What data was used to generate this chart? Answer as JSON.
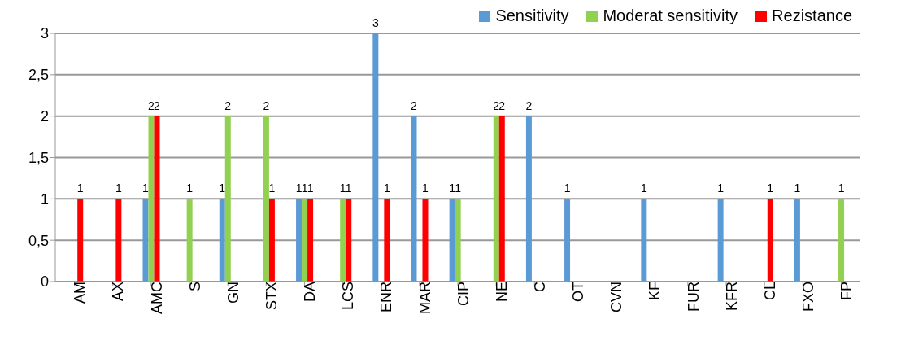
{
  "chart_data": {
    "type": "bar",
    "categories": [
      "AM",
      "AX",
      "AMC",
      "S",
      "GN",
      "STX",
      "DA",
      "LCS",
      "ENR",
      "MAR",
      "CIP",
      "NE",
      "C",
      "OT",
      "CVN",
      "KF",
      "FUR",
      "KFR",
      "CL",
      "FXO",
      "FP"
    ],
    "series": [
      {
        "name": "Sensitivity",
        "color": "#5b9bd5",
        "values": [
          null,
          null,
          1,
          null,
          1,
          null,
          1,
          null,
          3,
          2,
          1,
          null,
          2,
          1,
          null,
          1,
          null,
          1,
          null,
          1,
          null
        ]
      },
      {
        "name": "Moderat sensitivity",
        "color": "#92d050",
        "values": [
          null,
          null,
          2,
          1,
          2,
          2,
          1,
          1,
          null,
          null,
          1,
          2,
          null,
          null,
          null,
          null,
          null,
          null,
          null,
          null,
          1
        ]
      },
      {
        "name": "Rezistance",
        "color": "#ff0000",
        "values": [
          1,
          1,
          2,
          null,
          null,
          1,
          1,
          1,
          1,
          1,
          null,
          2,
          null,
          null,
          null,
          null,
          null,
          null,
          1,
          null,
          null
        ]
      }
    ],
    "ylim": [
      0,
      3
    ],
    "yticks": [
      0,
      {
        "value": 0.5,
        "label": "0,5"
      },
      1,
      {
        "value": 1.5,
        "label": "1,5"
      },
      2,
      {
        "value": 2.5,
        "label": "2,5"
      },
      3
    ],
    "grid": "y",
    "legend": "top right",
    "data_labels": true
  }
}
